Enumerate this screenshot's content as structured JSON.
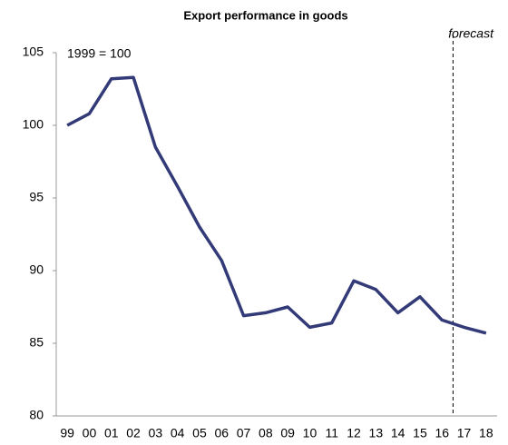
{
  "chart_data": {
    "type": "line",
    "title": "Export performance in goods",
    "categories": [
      "99",
      "00",
      "01",
      "02",
      "03",
      "04",
      "05",
      "06",
      "07",
      "08",
      "09",
      "10",
      "11",
      "12",
      "13",
      "14",
      "15",
      "16",
      "17",
      "18"
    ],
    "series": [
      {
        "name": "Export performance",
        "color": "#333a78",
        "values": [
          100.0,
          100.8,
          103.2,
          103.3,
          98.5,
          95.8,
          93.0,
          90.7,
          86.9,
          87.1,
          87.5,
          86.1,
          86.4,
          89.3,
          88.7,
          87.1,
          88.2,
          86.6,
          86.1,
          85.7
        ]
      }
    ],
    "ylim": [
      80,
      105
    ],
    "yticks": [
      80,
      85,
      90,
      95,
      100,
      105
    ],
    "grid": false,
    "annotations": [
      {
        "text": "1999 = 100"
      },
      {
        "text": "forecast",
        "between": [
          "16",
          "17"
        ]
      }
    ]
  }
}
